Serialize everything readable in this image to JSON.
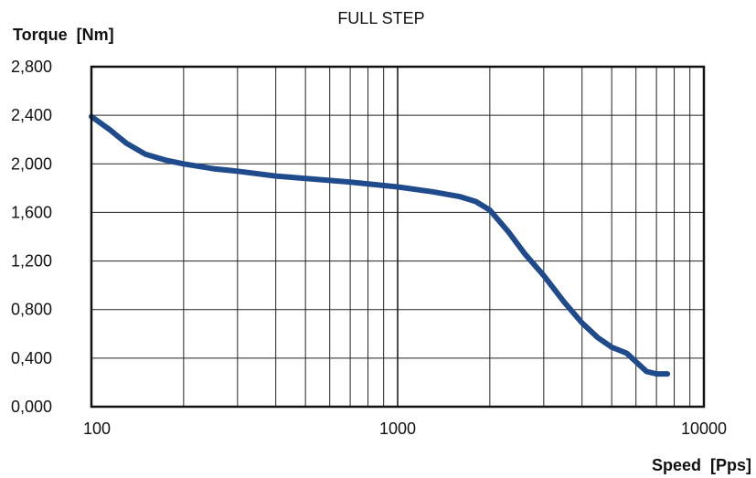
{
  "chart_data": {
    "type": "line",
    "title": "FULL STEP",
    "ylabel": "Torque  [Nm]",
    "xlabel": "Speed  [Pps]",
    "x_scale": "log",
    "xlim": [
      100,
      10000
    ],
    "ylim": [
      0,
      2.8
    ],
    "grid": true,
    "x_ticks": [
      {
        "value": 100,
        "label": "100"
      },
      {
        "value": 1000,
        "label": "1000"
      },
      {
        "value": 10000,
        "label": "10000"
      }
    ],
    "y_ticks": [
      {
        "value": 0.0,
        "label": "0,000"
      },
      {
        "value": 0.4,
        "label": "0,400"
      },
      {
        "value": 0.8,
        "label": "0,800"
      },
      {
        "value": 1.2,
        "label": "1,200"
      },
      {
        "value": 1.6,
        "label": "1,600"
      },
      {
        "value": 2.0,
        "label": "2,000"
      },
      {
        "value": 2.4,
        "label": "2,400"
      },
      {
        "value": 2.8,
        "label": "2,800"
      }
    ],
    "series": [
      {
        "color": "#1f4a8c",
        "points": [
          [
            100,
            2.39
          ],
          [
            115,
            2.28
          ],
          [
            130,
            2.17
          ],
          [
            150,
            2.08
          ],
          [
            175,
            2.03
          ],
          [
            200,
            2.0
          ],
          [
            250,
            1.96
          ],
          [
            300,
            1.94
          ],
          [
            400,
            1.9
          ],
          [
            500,
            1.88
          ],
          [
            700,
            1.85
          ],
          [
            1000,
            1.81
          ],
          [
            1300,
            1.77
          ],
          [
            1600,
            1.73
          ],
          [
            1800,
            1.69
          ],
          [
            2000,
            1.62
          ],
          [
            2300,
            1.44
          ],
          [
            2600,
            1.26
          ],
          [
            3000,
            1.08
          ],
          [
            3500,
            0.86
          ],
          [
            4000,
            0.69
          ],
          [
            4500,
            0.57
          ],
          [
            5000,
            0.49
          ],
          [
            5600,
            0.44
          ],
          [
            6000,
            0.37
          ],
          [
            6500,
            0.29
          ],
          [
            7000,
            0.27
          ],
          [
            7600,
            0.27
          ]
        ]
      }
    ]
  }
}
